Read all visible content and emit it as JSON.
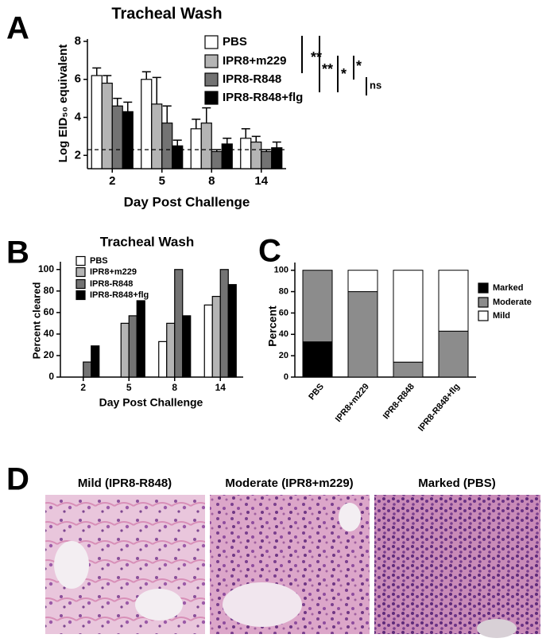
{
  "chart_data": [
    {
      "type": "bar",
      "panel_label": "A",
      "title": "Tracheal Wash",
      "xlabel": "Day Post Challenge",
      "ylabel": "Log EID₅₀ equivalent",
      "categories": [
        "2",
        "5",
        "8",
        "14"
      ],
      "series": [
        {
          "name": "PBS",
          "color": "#ffffff",
          "values": [
            6.2,
            6.0,
            3.4,
            2.9
          ],
          "errors": [
            0.4,
            0.4,
            0.5,
            0.5
          ]
        },
        {
          "name": "IPR8+m229",
          "color": "#b4b4b4",
          "values": [
            5.8,
            4.7,
            3.7,
            2.7
          ],
          "errors": [
            0.4,
            1.4,
            0.8,
            0.3
          ]
        },
        {
          "name": "IPR8-R848",
          "color": "#737373",
          "values": [
            4.6,
            3.7,
            2.2,
            2.2
          ],
          "errors": [
            0.4,
            0.9,
            0.1,
            0.1
          ]
        },
        {
          "name": "IPR8-R848+flg",
          "color": "#000000",
          "values": [
            4.3,
            2.5,
            2.6,
            2.4
          ],
          "errors": [
            0.5,
            0.3,
            0.3,
            0.3
          ]
        }
      ],
      "reference_line": 2.3,
      "annotations": [
        "**",
        "**",
        "*",
        "*",
        "ns"
      ],
      "ylim": [
        1.3,
        8
      ],
      "yticks": [
        2,
        4,
        6,
        8
      ]
    },
    {
      "type": "bar",
      "panel_label": "B",
      "title": "Tracheal Wash",
      "xlabel": "Day Post Challenge",
      "ylabel": "Percent cleared",
      "categories": [
        "2",
        "5",
        "8",
        "14"
      ],
      "series": [
        {
          "name": "PBS",
          "color": "#ffffff",
          "values": [
            0,
            0,
            33,
            67
          ]
        },
        {
          "name": "IPR8+m229",
          "color": "#b4b4b4",
          "values": [
            0,
            50,
            50,
            75
          ]
        },
        {
          "name": "IPR8-R848",
          "color": "#737373",
          "values": [
            14,
            57,
            100,
            100
          ]
        },
        {
          "name": "IPR8-R848+flg",
          "color": "#000000",
          "values": [
            29,
            71,
            57,
            86
          ]
        }
      ],
      "ylim": [
        0,
        105
      ],
      "yticks": [
        0,
        20,
        40,
        60,
        80,
        100
      ]
    },
    {
      "type": "stacked_bar",
      "panel_label": "C",
      "ylabel": "Percent",
      "categories": [
        "PBS",
        "IPR8+m229",
        "IPR8-R848",
        "IPR8-R848+flg"
      ],
      "series": [
        {
          "name": "Marked",
          "color": "#000000",
          "values": [
            33,
            0,
            0,
            0
          ]
        },
        {
          "name": "Moderate",
          "color": "#8c8c8c",
          "values": [
            67,
            80,
            14,
            43
          ]
        },
        {
          "name": "Mild",
          "color": "#ffffff",
          "values": [
            0,
            20,
            86,
            57
          ]
        }
      ],
      "ylim": [
        0,
        105
      ],
      "yticks": [
        0,
        20,
        40,
        60,
        80,
        100
      ]
    }
  ],
  "histology": {
    "panel_label": "D",
    "images": [
      "Mild (IPR8-R848)",
      "Moderate (IPR8+m229)",
      "Marked (PBS)"
    ]
  }
}
